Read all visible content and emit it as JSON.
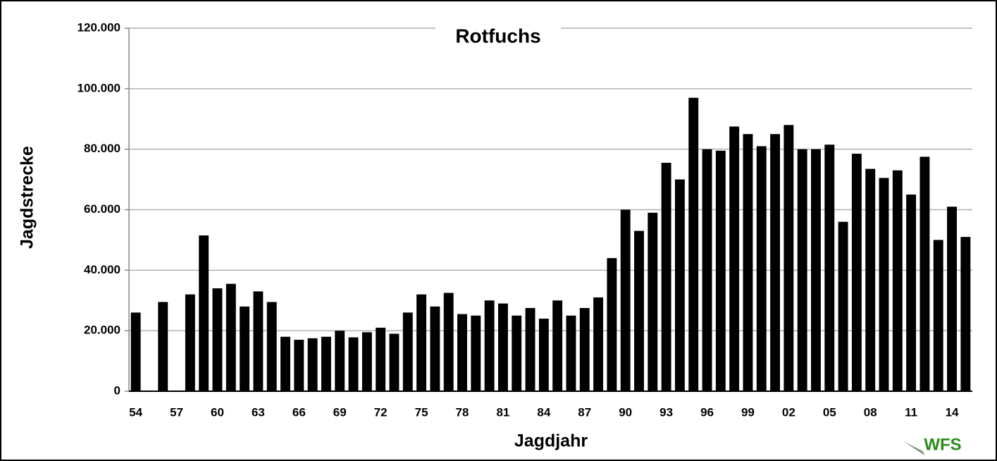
{
  "chart_data": {
    "type": "bar",
    "title": "Rotfuchs",
    "y_label": "Jagdstrecke",
    "x_label": "Jagdjahr",
    "logo": "WFS",
    "categories": [
      "54",
      null,
      null,
      "57",
      null,
      null,
      "60",
      null,
      null,
      "63",
      null,
      null,
      "66",
      null,
      null,
      "69",
      null,
      null,
      "72",
      null,
      null,
      "75",
      null,
      null,
      "78",
      null,
      null,
      "81",
      null,
      null,
      "84",
      null,
      null,
      "87",
      null,
      null,
      "90",
      null,
      null,
      "93",
      null,
      null,
      "96",
      null,
      null,
      "99",
      null,
      null,
      "02",
      null,
      null,
      "05",
      null,
      null,
      "08",
      null,
      null,
      "11",
      null,
      null,
      "14",
      null
    ],
    "values": [
      26000,
      null,
      29500,
      null,
      32000,
      51500,
      34000,
      35500,
      28000,
      33000,
      29500,
      18000,
      17000,
      17500,
      18000,
      20000,
      17800,
      19500,
      21000,
      19000,
      26000,
      32000,
      28000,
      32500,
      25500,
      25000,
      30000,
      29000,
      25000,
      27500,
      24000,
      30000,
      25000,
      27500,
      31000,
      44000,
      60000,
      53000,
      59000,
      75500,
      70000,
      97000,
      80000,
      79500,
      87500,
      85000,
      81000,
      85000,
      88000,
      80000,
      80000,
      81500,
      56000,
      78500,
      73500,
      70500,
      73000,
      65000,
      77500,
      50000,
      61000,
      51000
    ],
    "color": "#000000",
    "ylim": [
      0,
      120000
    ],
    "yticks": [
      0,
      {
        "value": 20000,
        "label": "20.000"
      },
      {
        "value": 40000,
        "label": "40.000"
      },
      {
        "value": 60000,
        "label": "60.000"
      },
      {
        "value": 80000,
        "label": "80.000"
      },
      {
        "value": 100000,
        "label": "100.000"
      },
      {
        "value": 120000,
        "label": "120.000"
      }
    ],
    "grid": true
  }
}
